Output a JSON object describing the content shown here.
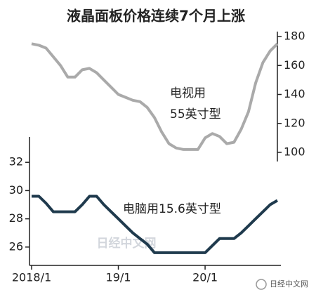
{
  "chart_data": {
    "type": "line",
    "title": "液晶面板价格连续7个月上涨",
    "categories": [
      "2018/1",
      null,
      null,
      null,
      null,
      null,
      null,
      null,
      null,
      null,
      null,
      null,
      "19/1",
      null,
      null,
      null,
      null,
      null,
      null,
      null,
      null,
      null,
      null,
      null,
      "20/1",
      null,
      null,
      null,
      null,
      null,
      null,
      null,
      null,
      null,
      null
    ],
    "series": [
      {
        "name": "电视用55英寸型",
        "color": "#aaaaaa",
        "axis": "y2",
        "values": [
          175,
          174,
          172,
          166,
          160,
          152,
          152,
          157,
          158,
          155,
          150,
          145,
          140,
          138,
          136,
          135,
          131,
          124,
          114,
          106,
          103,
          102,
          102,
          102,
          110,
          113,
          111,
          106,
          107,
          116,
          128,
          148,
          162,
          170,
          175
        ]
      },
      {
        "name": "电脑用15.6英寸型",
        "color": "#1f3a4d",
        "values": [
          29.6,
          29.6,
          29.1,
          28.5,
          28.5,
          28.5,
          28.5,
          29.0,
          29.6,
          29.6,
          29.0,
          28.5,
          28.0,
          27.5,
          27.0,
          26.6,
          26.2,
          25.6,
          25.6,
          25.6,
          25.6,
          25.6,
          25.6,
          25.6,
          25.6,
          26.1,
          26.6,
          26.6,
          26.6,
          27.0,
          27.5,
          28.0,
          28.5,
          29.0,
          29.3
        ]
      }
    ],
    "ylim": [
      24.7,
      33.8
    ],
    "yticks": [
      26,
      28,
      30,
      32
    ],
    "y2lim": [
      93.7,
      183.4
    ],
    "y2ticks": [
      100,
      120,
      140,
      160,
      180
    ],
    "annotations": [
      "电视用",
      "55英寸型"
    ],
    "watermark": "日经中文网",
    "source": "日经中文网"
  }
}
